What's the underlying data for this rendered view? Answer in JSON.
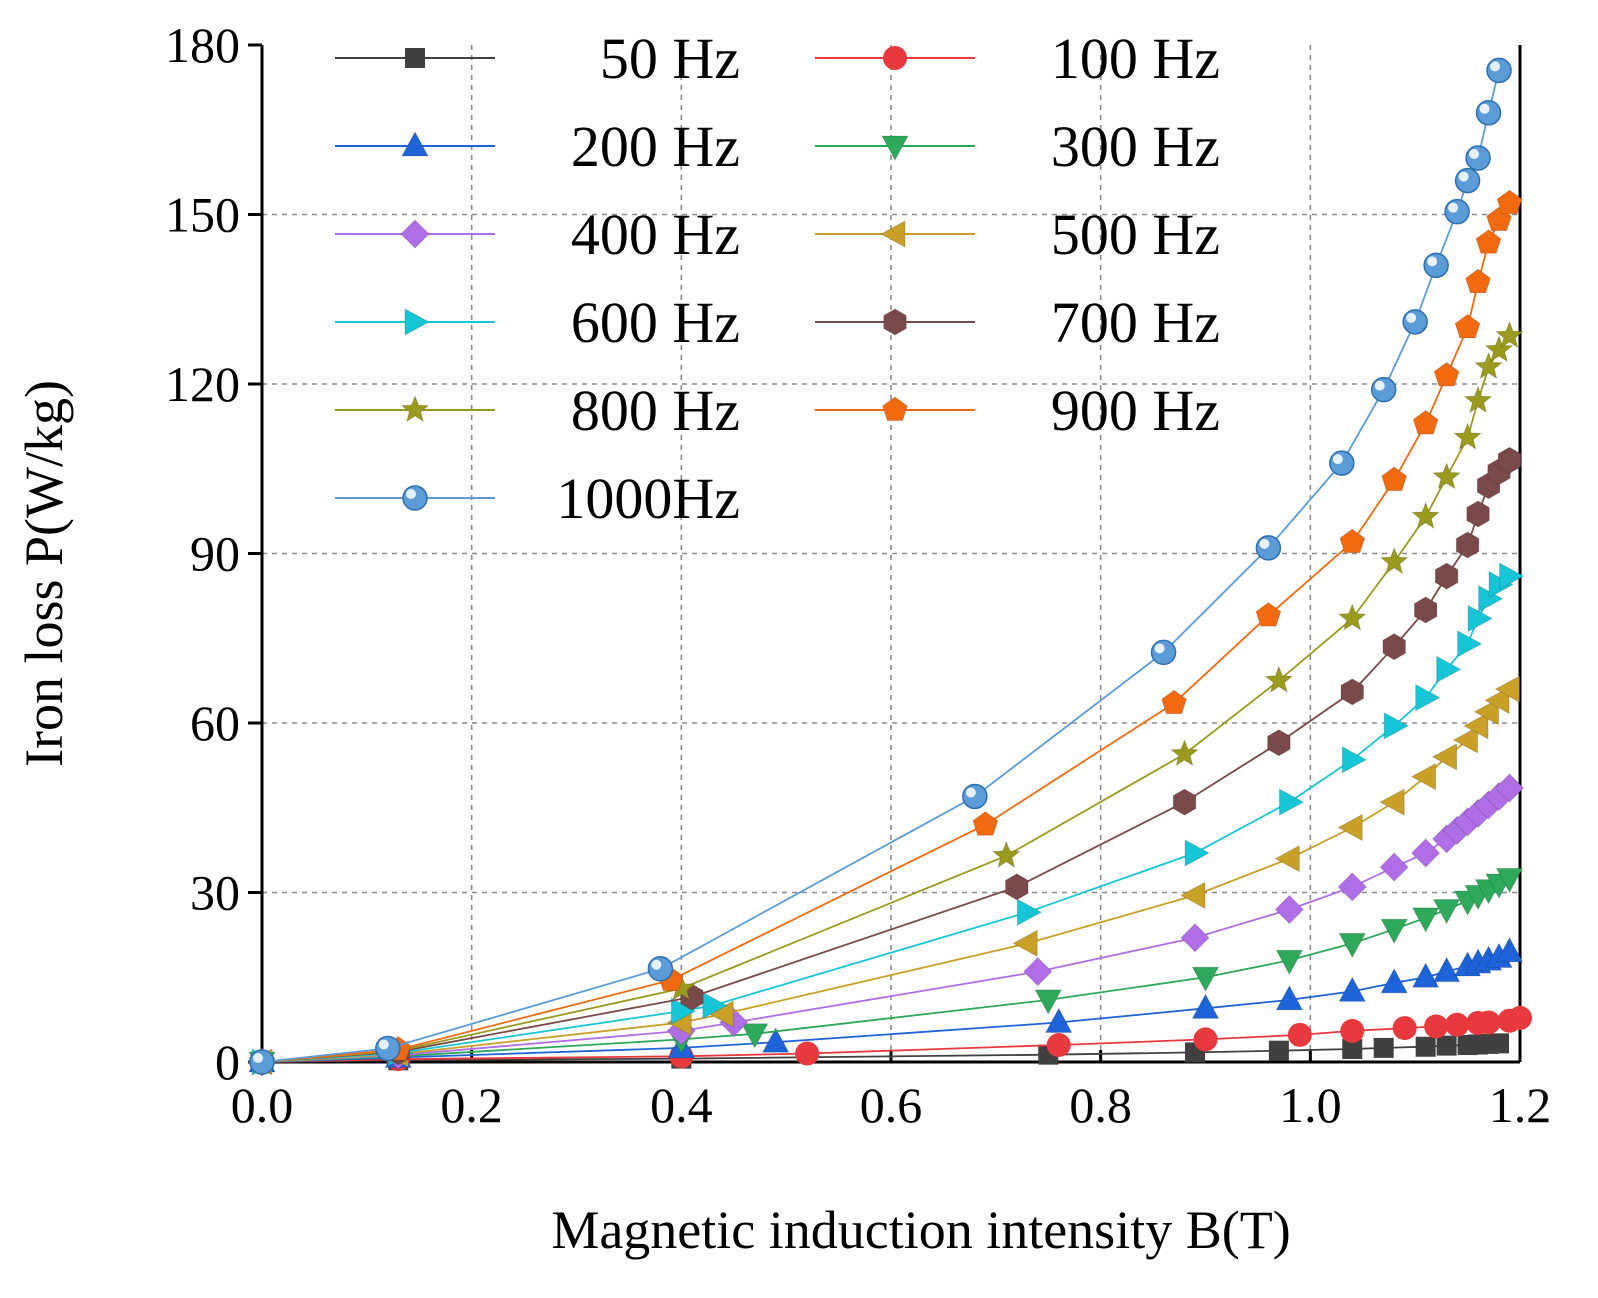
{
  "chart_data": {
    "type": "line",
    "title": "",
    "xlabel": "Magnetic induction intensity B(T)",
    "ylabel": "Iron loss P(W/kg)",
    "xlim": [
      0,
      1.2
    ],
    "ylim": [
      0,
      180
    ],
    "xticks": [
      "0.0",
      "0.2",
      "0.4",
      "0.6",
      "0.8",
      "1.0",
      "1.2"
    ],
    "yticks": [
      "0",
      "30",
      "60",
      "90",
      "120",
      "150",
      "180"
    ],
    "grid": true,
    "legend_position": "top-left",
    "series": [
      {
        "name": "50  Hz",
        "color": "#404040",
        "marker": "square",
        "x": [
          0.0,
          0.13,
          0.4,
          0.75,
          0.89,
          0.97,
          1.04,
          1.07,
          1.11,
          1.13,
          1.15,
          1.16,
          1.17,
          1.18
        ],
        "y": [
          0,
          0.3,
          0.6,
          1.3,
          1.7,
          2.0,
          2.3,
          2.5,
          2.7,
          2.9,
          3.0,
          3.1,
          3.2,
          3.3
        ]
      },
      {
        "name": "100 Hz",
        "color": "#e8393f",
        "marker": "circle",
        "x": [
          0.0,
          0.13,
          0.4,
          0.52,
          0.76,
          0.9,
          0.99,
          1.04,
          1.09,
          1.12,
          1.14,
          1.16,
          1.17,
          1.19,
          1.2
        ],
        "y": [
          0,
          0.5,
          1.0,
          1.5,
          3.0,
          4.0,
          4.8,
          5.5,
          6.0,
          6.3,
          6.6,
          6.9,
          7.0,
          7.3,
          7.8
        ]
      },
      {
        "name": "200 Hz",
        "color": "#1f63d8",
        "marker": "triangle-up",
        "x": [
          0.0,
          0.13,
          0.4,
          0.49,
          0.76,
          0.9,
          0.98,
          1.04,
          1.08,
          1.11,
          1.13,
          1.15,
          1.16,
          1.17,
          1.18,
          1.19
        ],
        "y": [
          0,
          0.8,
          2.5,
          3.5,
          7.0,
          9.5,
          11.0,
          12.5,
          14.0,
          15.0,
          16.0,
          17.0,
          17.5,
          18.0,
          18.5,
          19.5
        ]
      },
      {
        "name": "300 Hz",
        "color": "#2ea85a",
        "marker": "triangle-down",
        "x": [
          0.0,
          0.13,
          0.4,
          0.47,
          0.75,
          0.9,
          0.98,
          1.04,
          1.08,
          1.11,
          1.13,
          1.15,
          1.16,
          1.17,
          1.18,
          1.19
        ],
        "y": [
          0,
          1.0,
          4.0,
          5.0,
          11.0,
          15.0,
          18.0,
          21.0,
          23.5,
          25.5,
          27.0,
          28.5,
          29.5,
          30.5,
          31.5,
          32.5
        ]
      },
      {
        "name": "400 Hz",
        "color": "#b06ee6",
        "marker": "diamond",
        "x": [
          0.0,
          0.13,
          0.4,
          0.45,
          0.74,
          0.89,
          0.98,
          1.04,
          1.08,
          1.11,
          1.13,
          1.14,
          1.15,
          1.16,
          1.17,
          1.18,
          1.19
        ],
        "y": [
          0,
          1.2,
          5.5,
          7.0,
          16.0,
          22.0,
          27.0,
          31.0,
          34.5,
          37.0,
          39.5,
          41.0,
          42.5,
          44.0,
          45.5,
          47.0,
          48.5
        ]
      },
      {
        "name": "500 Hz",
        "color": "#c8a028",
        "marker": "triangle-left",
        "x": [
          0.0,
          0.13,
          0.4,
          0.44,
          0.73,
          0.89,
          0.98,
          1.04,
          1.08,
          1.11,
          1.13,
          1.15,
          1.16,
          1.17,
          1.18,
          1.19
        ],
        "y": [
          0,
          1.4,
          7.0,
          8.5,
          21.0,
          29.5,
          36.0,
          41.5,
          46.0,
          50.5,
          54.0,
          57.0,
          59.5,
          62.0,
          64.0,
          66.0
        ]
      },
      {
        "name": "600 Hz",
        "color": "#17c6d6",
        "marker": "triangle-right",
        "x": [
          0.0,
          0.13,
          0.4,
          0.43,
          0.73,
          0.89,
          0.98,
          1.04,
          1.08,
          1.11,
          1.13,
          1.15,
          1.16,
          1.17,
          1.18,
          1.19
        ],
        "y": [
          0,
          1.6,
          9.0,
          10.0,
          26.5,
          37.0,
          46.0,
          53.5,
          59.5,
          64.5,
          69.5,
          74.0,
          78.5,
          82.0,
          84.5,
          86.0
        ]
      },
      {
        "name": "700 Hz",
        "color": "#7a4a4a",
        "marker": "hexagon",
        "x": [
          0.0,
          0.13,
          0.41,
          0.72,
          0.88,
          0.97,
          1.04,
          1.08,
          1.11,
          1.13,
          1.15,
          1.16,
          1.17,
          1.18,
          1.19
        ],
        "y": [
          0,
          1.8,
          11.5,
          31.0,
          46.0,
          56.5,
          65.5,
          73.5,
          80.0,
          86.0,
          91.5,
          97.0,
          102.0,
          104.5,
          106.5
        ]
      },
      {
        "name": "800 Hz",
        "color": "#9a9a1e",
        "marker": "star",
        "x": [
          0.0,
          0.13,
          0.4,
          0.71,
          0.88,
          0.97,
          1.04,
          1.08,
          1.11,
          1.13,
          1.15,
          1.16,
          1.17,
          1.18,
          1.19
        ],
        "y": [
          0,
          2.0,
          13.0,
          36.5,
          54.5,
          67.5,
          78.5,
          88.5,
          96.5,
          103.5,
          110.5,
          117.0,
          123.0,
          126.0,
          128.5
        ]
      },
      {
        "name": "900 Hz",
        "color": "#f26a10",
        "marker": "pentagon",
        "x": [
          0.0,
          0.13,
          0.39,
          0.69,
          0.87,
          0.96,
          1.04,
          1.08,
          1.11,
          1.13,
          1.15,
          1.16,
          1.17,
          1.18,
          1.19
        ],
        "y": [
          0,
          2.2,
          14.5,
          42.0,
          63.5,
          79.0,
          92.0,
          103.0,
          113.0,
          121.5,
          130.0,
          138.0,
          145.0,
          149.0,
          152.0
        ]
      },
      {
        "name": "1000Hz",
        "color": "#5a9bd8",
        "marker": "sphere",
        "x": [
          0.0,
          0.12,
          0.38,
          0.68,
          0.86,
          0.96,
          1.03,
          1.07,
          1.1,
          1.12,
          1.14,
          1.15,
          1.16,
          1.17,
          1.18
        ],
        "y": [
          0,
          2.4,
          16.5,
          47.0,
          72.5,
          91.0,
          106.0,
          119.0,
          131.0,
          141.0,
          150.5,
          156.0,
          160.0,
          168.0,
          175.5
        ]
      }
    ]
  }
}
